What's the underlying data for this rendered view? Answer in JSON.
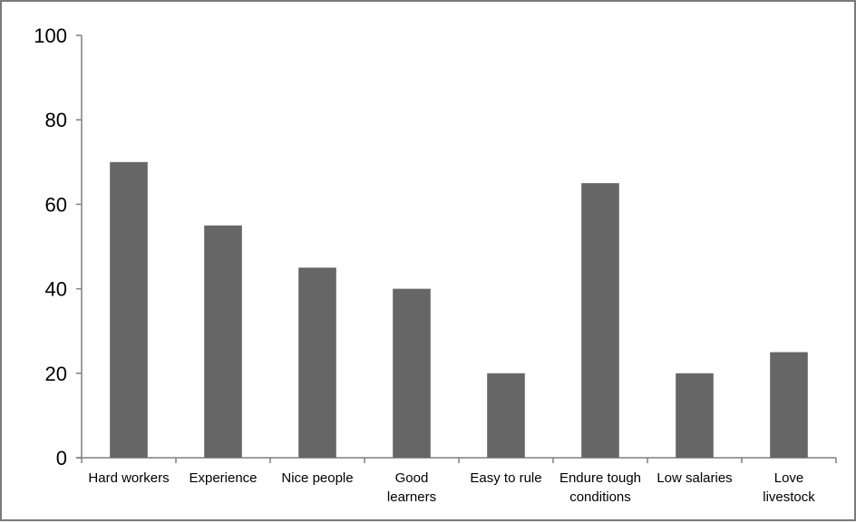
{
  "chart_data": {
    "type": "bar",
    "title": "",
    "xlabel": "",
    "ylabel": "",
    "ylim": [
      0,
      100
    ],
    "yticks": [
      0,
      20,
      40,
      60,
      80,
      100
    ],
    "categories": [
      [
        "Hard workers"
      ],
      [
        "Experience"
      ],
      [
        "Nice people"
      ],
      [
        "Good",
        "learners"
      ],
      [
        "Easy to rule"
      ],
      [
        "Endure tough",
        "conditions"
      ],
      [
        "Low salaries"
      ],
      [
        "Love",
        "livestock"
      ]
    ],
    "values": [
      70,
      55,
      45,
      40,
      20,
      65,
      20,
      25
    ],
    "bar_color": "#666666",
    "axis_color": "#7f7f7f",
    "grid": false,
    "legend": "none"
  }
}
